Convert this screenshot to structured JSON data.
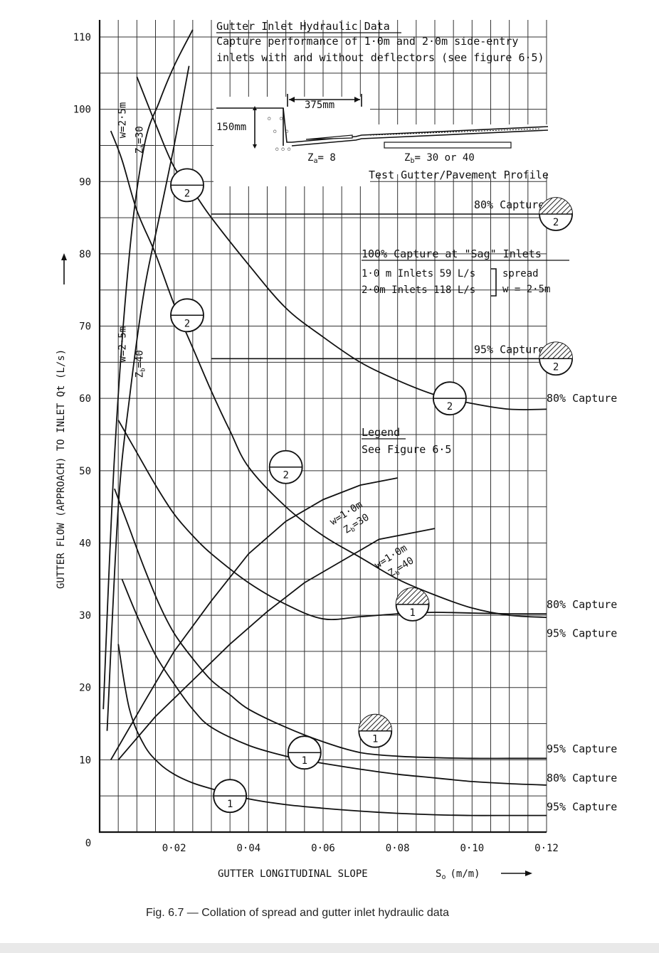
{
  "chart_data": {
    "type": "line",
    "xlabel": "GUTTER LONGITUDINAL SLOPE",
    "xlabel_symbol": "S",
    "xlabel_sub": "o",
    "xlabel_unit": "(m/m)",
    "ylabel": "GUTTER FLOW (APPROACH) TO INLET Qt (L/s)",
    "xlim": [
      0,
      0.12
    ],
    "ylim": [
      0,
      110
    ],
    "x_ticks": [
      "0·02",
      "0·04",
      "0·06",
      "0·08",
      "0·10",
      "0·12"
    ],
    "y_ticks": [
      "10",
      "20",
      "30",
      "40",
      "50",
      "60",
      "70",
      "80",
      "90",
      "100",
      "110"
    ],
    "origin_label": "0",
    "grid": true,
    "series": [
      {
        "x": [
          0.003,
          0.006,
          0.01,
          0.015,
          0.02,
          0.025,
          0.03,
          0.035,
          0.04,
          0.05,
          0.06,
          0.07,
          0.08,
          0.09,
          0.1,
          0.11,
          0.12
        ],
        "y": [
          97,
          93,
          86,
          80,
          73,
          67,
          61,
          55.5,
          50.5,
          45,
          41,
          38,
          35,
          32.8,
          31,
          30,
          29.7
        ]
      },
      {
        "x": [
          0.01,
          0.015,
          0.02,
          0.025,
          0.03,
          0.04,
          0.05,
          0.06,
          0.07,
          0.08,
          0.09,
          0.1,
          0.11,
          0.12
        ],
        "y": [
          104.5,
          98,
          92,
          88.7,
          85,
          78.5,
          72.5,
          68.5,
          65,
          62.5,
          60.5,
          59.3,
          58.5,
          58.5
        ]
      },
      {
        "x": [
          0.005,
          0.01,
          0.015,
          0.02,
          0.025,
          0.03,
          0.04,
          0.05,
          0.06,
          0.07,
          0.08,
          0.09,
          0.1,
          0.11,
          0.12
        ],
        "y": [
          57,
          52.5,
          48,
          44,
          41,
          38.5,
          34.5,
          31.5,
          29.5,
          29.8,
          30.2,
          30.4,
          30.3,
          30.2,
          30.2
        ]
      },
      {
        "x": [
          0.004,
          0.008,
          0.012,
          0.016,
          0.02,
          0.025,
          0.03,
          0.035,
          0.04,
          0.05,
          0.06,
          0.07,
          0.08,
          0.09,
          0.1,
          0.11,
          0.12
        ],
        "y": [
          47.5,
          42,
          36.5,
          31.5,
          27.5,
          24,
          21,
          19,
          17,
          14.5,
          12.5,
          11,
          10.5,
          10.3,
          10.2,
          10.2,
          10.2
        ]
      },
      {
        "x": [
          0.006,
          0.01,
          0.015,
          0.02,
          0.025,
          0.03,
          0.04,
          0.05,
          0.055,
          0.06,
          0.07,
          0.08,
          0.09,
          0.1,
          0.11,
          0.12
        ],
        "y": [
          35,
          30,
          24.5,
          20.5,
          17,
          14.5,
          12,
          10.5,
          10,
          9.5,
          8.7,
          8.0,
          7.5,
          7.0,
          6.7,
          6.5
        ]
      },
      {
        "x": [
          0.005,
          0.008,
          0.012,
          0.016,
          0.02,
          0.025,
          0.03,
          0.035,
          0.04,
          0.05,
          0.06,
          0.07,
          0.08,
          0.09,
          0.1,
          0.11,
          0.12
        ],
        "y": [
          26,
          17,
          12,
          9.5,
          8,
          6.8,
          6,
          5.3,
          4.6,
          3.8,
          3.3,
          2.9,
          2.6,
          2.4,
          2.3,
          2.3,
          2.3
        ]
      },
      {
        "name": "w=2·5m Zb=30 (top)",
        "x": [
          0.001,
          0.004,
          0.008,
          0.012,
          0.016,
          0.02,
          0.025
        ],
        "y": [
          17,
          52,
          80,
          95,
          101,
          106,
          111
        ]
      },
      {
        "name": "w=2·5m Zb=40 (top)",
        "x": [
          0.002,
          0.005,
          0.008,
          0.012,
          0.016,
          0.02,
          0.024
        ],
        "y": [
          14,
          45,
          60,
          75,
          85,
          95,
          106
        ]
      },
      {
        "name": "w=1·0m Zb=30",
        "x": [
          0.003,
          0.012,
          0.02,
          0.03,
          0.04,
          0.05,
          0.06,
          0.07,
          0.08
        ],
        "y": [
          10,
          18,
          25,
          32,
          38.5,
          43,
          46,
          48,
          49
        ]
      },
      {
        "name": "w=1·0m Zb=40",
        "x": [
          0.005,
          0.015,
          0.025,
          0.035,
          0.045,
          0.055,
          0.065,
          0.075,
          0.09
        ],
        "y": [
          10,
          16,
          21,
          26,
          30.5,
          34.5,
          37.5,
          40.5,
          42
        ]
      }
    ],
    "hlines": [
      {
        "label": "80% Capture",
        "y": 85.5,
        "x_from": 0.03,
        "x_to": 0.12
      },
      {
        "label": "95% Capture",
        "y": 65.5,
        "x_from": 0.03,
        "x_to": 0.12
      }
    ],
    "markers": [
      {
        "label": "2",
        "x": 0.0235,
        "y": 89.5,
        "filled": false
      },
      {
        "label": "2",
        "x": 0.0235,
        "y": 71.5,
        "filled": false
      },
      {
        "label": "2",
        "x": 0.05,
        "y": 50.5,
        "filled": false
      },
      {
        "label": "2",
        "x": 0.094,
        "y": 60.0,
        "filled": false
      },
      {
        "label": "2",
        "x": 0.1225,
        "y": 85.5,
        "filled": true
      },
      {
        "label": "2",
        "x": 0.1225,
        "y": 65.5,
        "filled": true
      },
      {
        "label": "1",
        "x": 0.084,
        "y": 31.5,
        "filled": true
      },
      {
        "label": "1",
        "x": 0.074,
        "y": 14.0,
        "filled": true
      },
      {
        "label": "1",
        "x": 0.055,
        "y": 11.0,
        "filled": false
      },
      {
        "label": "1",
        "x": 0.035,
        "y": 5.0,
        "filled": false
      }
    ],
    "right_labels": [
      {
        "text": "80% Capture",
        "y": 60.0
      },
      {
        "text": "80% Capture",
        "y": 31.5
      },
      {
        "text": "95% Capture",
        "y": 27.5
      },
      {
        "text": "95% Capture",
        "y": 11.5
      },
      {
        "text": "80% Capture",
        "y": 7.5
      },
      {
        "text": "95% Capture",
        "y": 3.5
      }
    ],
    "steep_labels": [
      {
        "w": "w=2·5m",
        "z": "Z",
        "zsub": "b",
        "zval": "=30",
        "x": 0.007,
        "y": 96
      },
      {
        "w": "w=2·5m",
        "z": "Z",
        "zsub": "b",
        "zval": "=40",
        "x": 0.007,
        "y": 65
      }
    ],
    "line_labels": [
      {
        "w": "w=1·0m",
        "z": "Z",
        "zsub": "b",
        "zval": "=30",
        "x": 0.068,
        "y": 43.5
      },
      {
        "w": "w=1·0m",
        "z": "Z",
        "zsub": "b",
        "zval": "=40",
        "x": 0.08,
        "y": 37.5
      }
    ]
  },
  "annotations": {
    "title": "Gutter Inlet Hydraulic Data",
    "desc1": "Capture performance of 1·0m and 2·0m side-entry",
    "desc2": "inlets with and without deflectors (see figure 6·5)",
    "dim_375": "375mm",
    "dim_150": "150mm",
    "za": "Z",
    "za_sub": "a",
    "za_val": "= 8",
    "zb": "Z",
    "zb_sub": "b",
    "zb_val": "= 30 or 40",
    "profile_label": "Test Gutter/Pavement Profile",
    "sag_title": "100% Capture at \"Sag\" Inlets",
    "sag_row1": "1·0 m Inlets 59 L/s",
    "sag_row2": "2·0m Inlets 118 L/s",
    "sag_spread": "spread",
    "sag_w": "w = 2·5m",
    "legend_title": "Legend",
    "legend_text": "See Figure 6·5"
  },
  "caption": "Fig. 6.7 — Collation of spread and gutter inlet hydraulic data"
}
